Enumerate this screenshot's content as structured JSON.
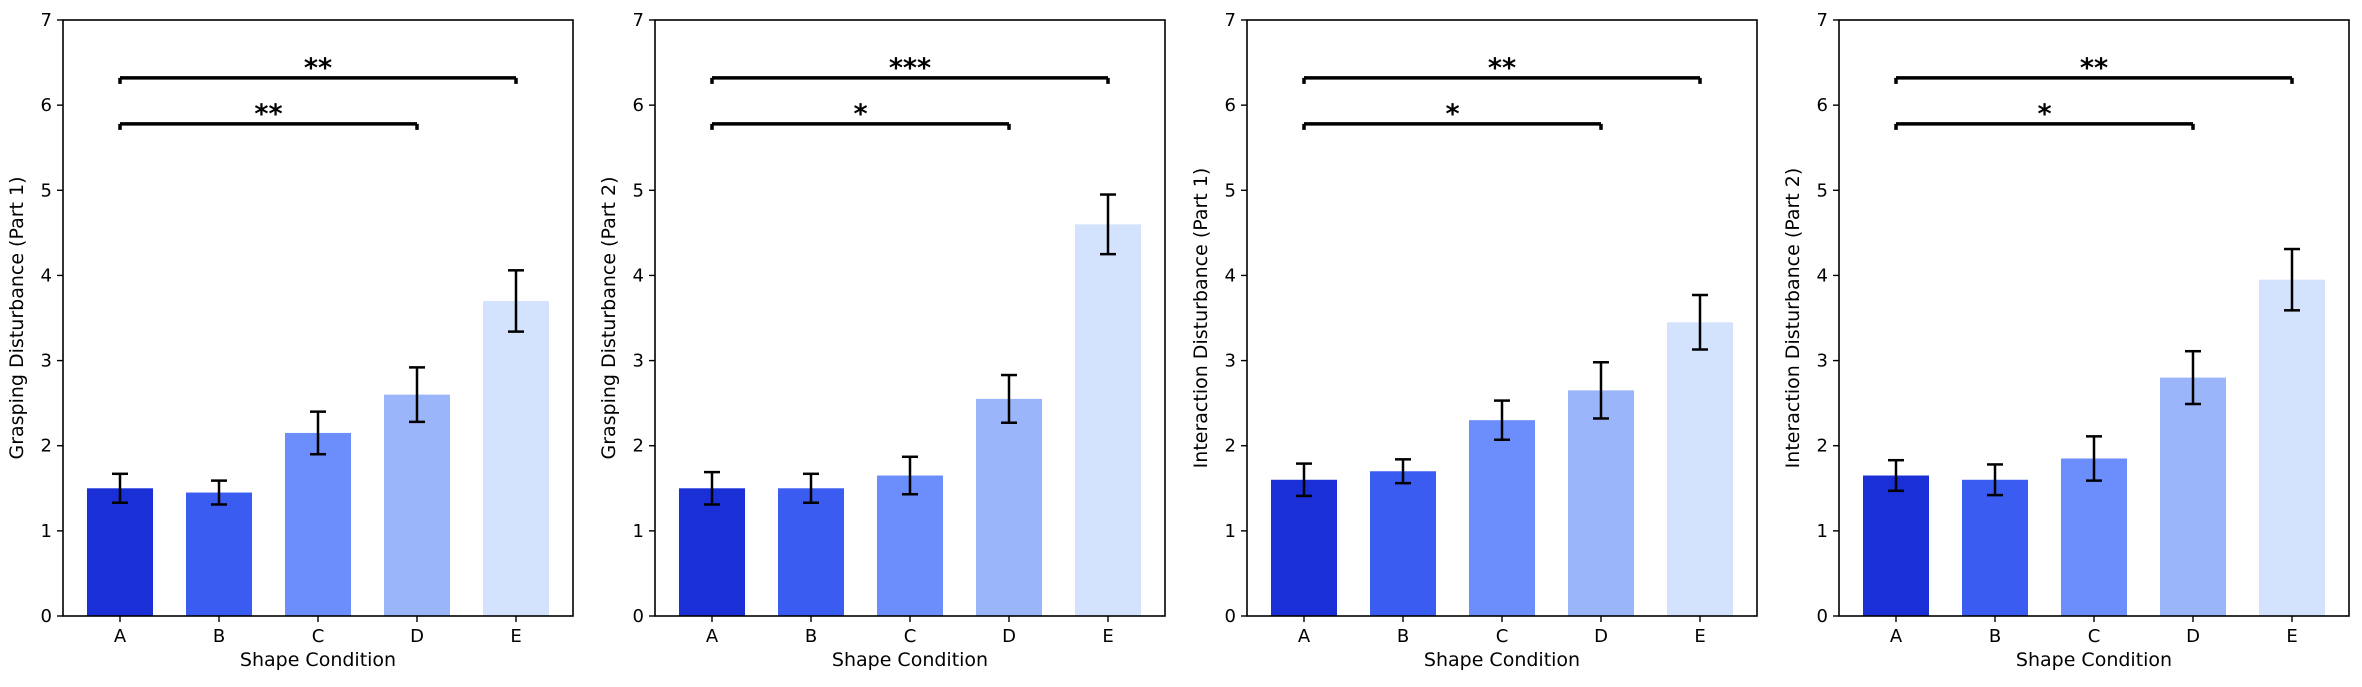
{
  "chart_data": [
    {
      "type": "bar",
      "xlabel": "Shape Condition",
      "ylabel": "Grasping Disturbance (Part 1)",
      "ylim": [
        0,
        7
      ],
      "yticks": [
        "0",
        "1",
        "2",
        "3",
        "4",
        "5",
        "6",
        "7"
      ],
      "categories": [
        "A",
        "B",
        "C",
        "D",
        "E"
      ],
      "values": [
        1.5,
        1.45,
        2.15,
        2.6,
        3.7
      ],
      "errors": [
        0.17,
        0.14,
        0.25,
        0.32,
        0.36
      ],
      "significance": [
        {
          "from": "A",
          "to": "E",
          "y": 6.32,
          "label": "**"
        },
        {
          "from": "A",
          "to": "D",
          "y": 5.78,
          "label": "**"
        }
      ]
    },
    {
      "type": "bar",
      "xlabel": "Shape Condition",
      "ylabel": "Grasping Disturbance (Part 2)",
      "ylim": [
        0,
        7
      ],
      "yticks": [
        "0",
        "1",
        "2",
        "3",
        "4",
        "5",
        "6",
        "7"
      ],
      "categories": [
        "A",
        "B",
        "C",
        "D",
        "E"
      ],
      "values": [
        1.5,
        1.5,
        1.65,
        2.55,
        4.6
      ],
      "errors": [
        0.19,
        0.17,
        0.22,
        0.28,
        0.35
      ],
      "significance": [
        {
          "from": "A",
          "to": "E",
          "y": 6.32,
          "label": "***"
        },
        {
          "from": "A",
          "to": "D",
          "y": 5.78,
          "label": "*"
        }
      ]
    },
    {
      "type": "bar",
      "xlabel": "Shape Condition",
      "ylabel": "Interaction Disturbance (Part 1)",
      "ylim": [
        0,
        7
      ],
      "yticks": [
        "0",
        "1",
        "2",
        "3",
        "4",
        "5",
        "6",
        "7"
      ],
      "categories": [
        "A",
        "B",
        "C",
        "D",
        "E"
      ],
      "values": [
        1.6,
        1.7,
        2.3,
        2.65,
        3.45
      ],
      "errors": [
        0.19,
        0.14,
        0.23,
        0.33,
        0.32
      ],
      "significance": [
        {
          "from": "A",
          "to": "E",
          "y": 6.32,
          "label": "**"
        },
        {
          "from": "A",
          "to": "D",
          "y": 5.78,
          "label": "*"
        }
      ]
    },
    {
      "type": "bar",
      "xlabel": "Shape Condition",
      "ylabel": "Interaction Disturbance (Part 2)",
      "ylim": [
        0,
        7
      ],
      "yticks": [
        "0",
        "1",
        "2",
        "3",
        "4",
        "5",
        "6",
        "7"
      ],
      "categories": [
        "A",
        "B",
        "C",
        "D",
        "E"
      ],
      "values": [
        1.65,
        1.6,
        1.85,
        2.8,
        3.95
      ],
      "errors": [
        0.18,
        0.18,
        0.26,
        0.31,
        0.36
      ],
      "significance": [
        {
          "from": "A",
          "to": "E",
          "y": 6.32,
          "label": "**"
        },
        {
          "from": "A",
          "to": "D",
          "y": 5.78,
          "label": "*"
        }
      ]
    }
  ],
  "colors": {
    "bars": [
      "#1a2fd6",
      "#3b5cf0",
      "#6b8efc",
      "#9bb5fb",
      "#d3e2fd"
    ],
    "error_bars": "#000000",
    "axes": "#000000",
    "significance": "#000000"
  }
}
